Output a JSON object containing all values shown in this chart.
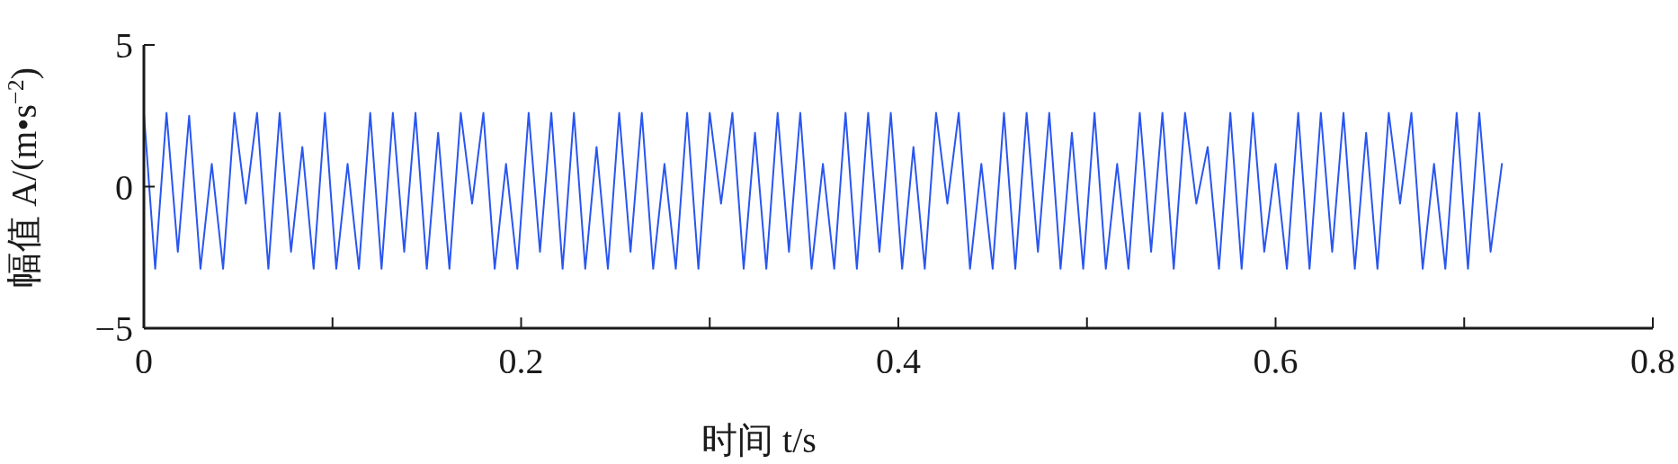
{
  "chart_data": {
    "type": "line",
    "xlabel": "时间 t/s",
    "ylabel": "幅值 A/(m•s$^{−2}$)",
    "xlim": [
      0,
      0.8
    ],
    "ylim": [
      -5,
      5
    ],
    "xticks": [
      0,
      {
        "value": 0.1,
        "label": null
      },
      0.2,
      {
        "value": 0.3,
        "label": null
      },
      0.4,
      {
        "value": 0.5,
        "label": null
      },
      0.6,
      {
        "value": 0.7,
        "label": null
      },
      0.8
    ],
    "yticks": [
      -5,
      0,
      5
    ],
    "marker": "none",
    "line_style": "solid",
    "series": [
      {
        "color": "#2a56f0",
        "x": [
          0,
          0.006,
          0.012,
          0.018,
          0.024,
          0.03,
          0.036,
          0.042,
          0.048,
          0.054,
          0.06,
          0.066,
          0.072,
          0.078,
          0.084,
          0.09,
          0.096,
          0.102,
          0.108,
          0.114,
          0.12,
          0.126,
          0.132,
          0.138,
          0.144,
          0.15,
          0.156,
          0.162,
          0.168,
          0.174,
          0.18,
          0.186,
          0.192,
          0.198,
          0.204,
          0.21,
          0.216,
          0.222,
          0.228,
          0.234,
          0.24,
          0.246,
          0.252,
          0.258,
          0.264,
          0.27,
          0.276,
          0.282,
          0.288,
          0.294,
          0.3,
          0.306,
          0.312,
          0.318,
          0.324,
          0.33,
          0.336,
          0.342,
          0.348,
          0.354,
          0.36,
          0.366,
          0.372,
          0.378,
          0.384,
          0.39,
          0.396,
          0.402,
          0.408,
          0.414,
          0.42,
          0.426,
          0.432,
          0.438,
          0.444,
          0.45,
          0.456,
          0.462,
          0.468,
          0.474,
          0.48,
          0.486,
          0.492,
          0.498,
          0.504,
          0.51,
          0.516,
          0.522,
          0.528,
          0.534,
          0.54,
          0.546,
          0.552,
          0.558,
          0.564,
          0.57,
          0.576,
          0.582,
          0.588,
          0.594,
          0.6,
          0.606,
          0.612,
          0.618,
          0.624,
          0.63,
          0.636,
          0.642,
          0.648,
          0.654,
          0.66,
          0.666,
          0.672,
          0.678,
          0.684,
          0.69,
          0.696,
          0.702,
          0.708,
          0.714,
          0.72
        ],
        "values": [
          2.6,
          -2.9,
          2.6,
          -2.3,
          2.5,
          -2.9,
          0.8,
          -2.9,
          2.6,
          -0.6,
          2.6,
          -2.9,
          2.6,
          -2.3,
          1.4,
          -2.9,
          2.6,
          -2.9,
          0.8,
          -2.9,
          2.6,
          -2.9,
          2.6,
          -2.3,
          2.6,
          -2.9,
          1.9,
          -2.9,
          2.6,
          -0.6,
          2.6,
          -2.9,
          0.8,
          -2.9,
          2.6,
          -2.3,
          2.6,
          -2.9,
          2.6,
          -2.9,
          1.4,
          -2.9,
          2.6,
          -2.3,
          2.6,
          -2.9,
          0.8,
          -2.9,
          2.6,
          -2.9,
          2.6,
          -0.6,
          2.6,
          -2.9,
          1.9,
          -2.9,
          2.6,
          -2.3,
          2.6,
          -2.9,
          0.8,
          -2.9,
          2.6,
          -2.9,
          2.6,
          -2.3,
          2.6,
          -2.9,
          1.4,
          -2.9,
          2.6,
          -0.6,
          2.6,
          -2.9,
          0.8,
          -2.9,
          2.6,
          -2.9,
          2.6,
          -2.3,
          2.6,
          -2.9,
          1.9,
          -2.9,
          2.6,
          -2.9,
          0.8,
          -2.9,
          2.6,
          -2.3,
          2.6,
          -2.9,
          2.6,
          -0.6,
          1.4,
          -2.9,
          2.6,
          -2.9,
          2.6,
          -2.3,
          0.8,
          -2.9,
          2.6,
          -2.9,
          2.6,
          -2.3,
          2.6,
          -2.9,
          1.9,
          -2.9,
          2.6,
          -0.6,
          2.6,
          -2.9,
          0.8,
          -2.9,
          2.6,
          -2.9,
          2.6,
          -2.3,
          0.8
        ]
      }
    ]
  }
}
